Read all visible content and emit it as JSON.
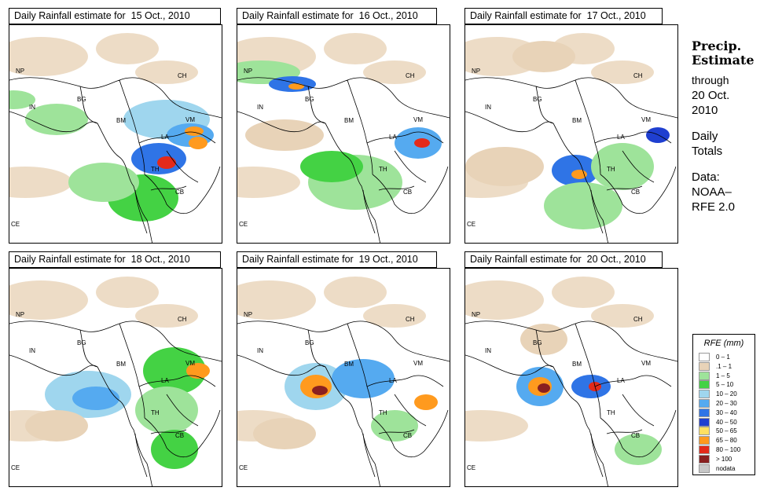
{
  "panels": [
    {
      "title": "Daily Rainfall estimate for  15 Oct., 2010",
      "date": "15 Oct., 2010"
    },
    {
      "title": "Daily Rainfall estimate for  16 Oct., 2010",
      "date": "16 Oct., 2010"
    },
    {
      "title": "Daily Rainfall estimate for  17 Oct., 2010",
      "date": "17 Oct., 2010"
    },
    {
      "title": "Daily Rainfall estimate for  18 Oct., 2010",
      "date": "18 Oct., 2010"
    },
    {
      "title": "Daily Rainfall estimate for  19 Oct., 2010",
      "date": "19 Oct., 2010"
    },
    {
      "title": "Daily Rainfall estimate for  20 Oct., 2010",
      "date": "20 Oct., 2010"
    }
  ],
  "country_labels": [
    "NP",
    "CH",
    "IN",
    "BG",
    "BM",
    "VM",
    "LA",
    "TH",
    "CB",
    "CE"
  ],
  "sidebar": {
    "title_line1": "Precip.",
    "title_line2": "Estimate",
    "through": "through",
    "end_date_line1": "20 Oct.",
    "end_date_line2": "2010",
    "daily_line1": "Daily",
    "daily_line2": "Totals",
    "data_line1": "Data:",
    "data_line2": "NOAA–",
    "data_line3": "RFE 2.0"
  },
  "legend": {
    "title": "RFE (mm)",
    "items": [
      {
        "label": "0 – 1",
        "color": "#ffffff"
      },
      {
        "label": ".1 – 1",
        "color": "#e8d3b8"
      },
      {
        "label": "1 – 5",
        "color": "#9ee39a"
      },
      {
        "label": "5 – 10",
        "color": "#44d244"
      },
      {
        "label": "10 – 20",
        "color": "#9fd6ee"
      },
      {
        "label": "20 – 30",
        "color": "#55aaf0"
      },
      {
        "label": "30 – 40",
        "color": "#2f74e6"
      },
      {
        "label": "40 – 50",
        "color": "#1f3fd0"
      },
      {
        "label": "50 – 65",
        "color": "#ffe060"
      },
      {
        "label": "65 – 80",
        "color": "#ff9a1e"
      },
      {
        "label": "80 – 100",
        "color": "#e42a1a"
      },
      {
        "label": "> 100",
        "color": "#8a2020"
      },
      {
        "label": "nodata",
        "color": "#c8c8c8"
      }
    ]
  }
}
